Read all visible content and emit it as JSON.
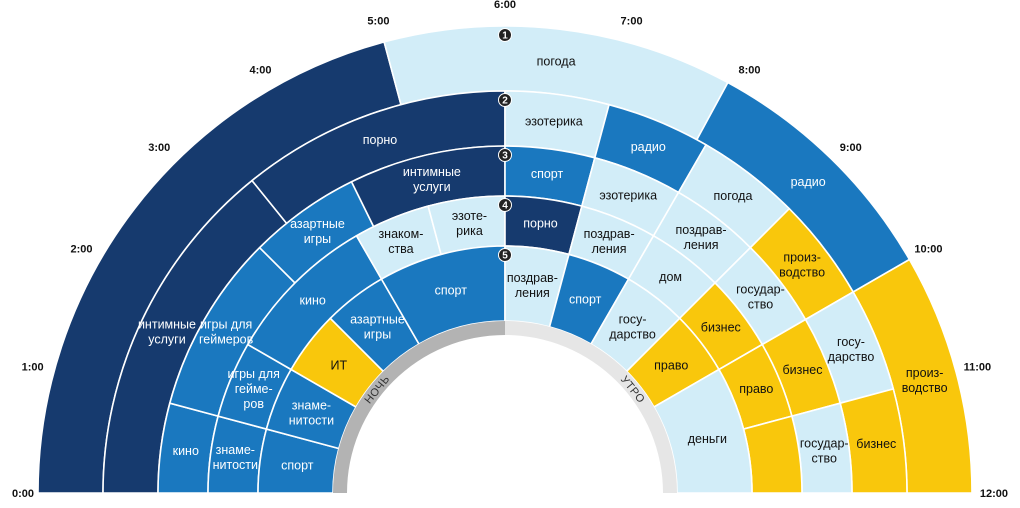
{
  "colors": {
    "night": "#163a6e",
    "mid": "#1a78bf",
    "pale": "#d2edf8",
    "gold": "#f9c70c",
    "band": "#b3b3b3",
    "band_right": "#e6e6e6",
    "ring_num_bg": "#222222"
  },
  "chart_data": {
    "type": "radial-timeline",
    "title": "",
    "time_labels": [
      "0:00",
      "1:00",
      "2:00",
      "3:00",
      "4:00",
      "5:00",
      "6:00",
      "7:00",
      "8:00",
      "9:00",
      "10:00",
      "11:00",
      "12:00"
    ],
    "band_labels": [
      "НОЧЬ",
      "УТРО"
    ],
    "rings": [
      {
        "number": "1",
        "segments": [
          {
            "start": 0,
            "end": 5,
            "label": "",
            "color": "night"
          },
          {
            "start": 5,
            "end": 7.9,
            "label": "погода",
            "color": "pale"
          },
          {
            "start": 7.9,
            "end": 10,
            "label": "радио",
            "color": "mid"
          },
          {
            "start": 10,
            "end": 12,
            "label": "произ-\nводство",
            "color": "gold"
          }
        ]
      },
      {
        "number": "2",
        "segments": [
          {
            "start": 0,
            "end": 3.4,
            "label": "интимные\nуслуги",
            "color": "night"
          },
          {
            "start": 3.4,
            "end": 6,
            "label": "порно",
            "color": "night"
          },
          {
            "start": 6,
            "end": 7,
            "label": "эзотерика",
            "color": "pale"
          },
          {
            "start": 7,
            "end": 8,
            "label": "радио",
            "color": "mid"
          },
          {
            "start": 8,
            "end": 9,
            "label": "погода",
            "color": "pale"
          },
          {
            "start": 9,
            "end": 10,
            "label": "произ-\nводство",
            "color": "gold"
          },
          {
            "start": 10,
            "end": 11,
            "label": "госу-\nдарство",
            "color": "pale"
          },
          {
            "start": 11,
            "end": 12,
            "label": "бизнес",
            "color": "gold"
          }
        ]
      },
      {
        "number": "3",
        "segments": [
          {
            "start": 0,
            "end": 1,
            "label": "кино",
            "color": "mid"
          },
          {
            "start": 1,
            "end": 3,
            "label": "игры для\nгеймеров",
            "color": "mid"
          },
          {
            "start": 3,
            "end": 4.25,
            "label": "азартные\nигры",
            "color": "mid"
          },
          {
            "start": 4.25,
            "end": 6,
            "label": "интимные\nуслуги",
            "color": "night"
          },
          {
            "start": 6,
            "end": 7,
            "label": "спорт",
            "color": "mid"
          },
          {
            "start": 7,
            "end": 8,
            "label": "эзотерика",
            "color": "pale"
          },
          {
            "start": 8,
            "end": 9,
            "label": "поздрав-\nления",
            "color": "pale"
          },
          {
            "start": 9,
            "end": 10,
            "label": "государ-\nство",
            "color": "pale"
          },
          {
            "start": 10,
            "end": 11,
            "label": "бизнес",
            "color": "gold"
          },
          {
            "start": 11,
            "end": 12,
            "label": "государ-\nство",
            "color": "pale"
          }
        ]
      },
      {
        "number": "4",
        "segments": [
          {
            "start": 0,
            "end": 1,
            "label": "знаме-\nнитости",
            "color": "mid"
          },
          {
            "start": 1,
            "end": 2,
            "label": "игры для\nгейме-\nров",
            "color": "mid"
          },
          {
            "start": 2,
            "end": 4,
            "label": "кино",
            "color": "mid"
          },
          {
            "start": 4,
            "end": 5,
            "label": "знаком-\nства",
            "color": "pale"
          },
          {
            "start": 5,
            "end": 6,
            "label": "эзоте-\nрика",
            "color": "pale"
          },
          {
            "start": 6,
            "end": 7,
            "label": "порно",
            "color": "night"
          },
          {
            "start": 7,
            "end": 8,
            "label": "поздрав-\nления",
            "color": "pale"
          },
          {
            "start": 8,
            "end": 9,
            "label": "дом",
            "color": "pale"
          },
          {
            "start": 9,
            "end": 10,
            "label": "бизнес",
            "color": "gold"
          },
          {
            "start": 10,
            "end": 11,
            "label": "право",
            "color": "gold"
          },
          {
            "start": 11,
            "end": 12,
            "label": "",
            "color": "gold"
          }
        ]
      },
      {
        "number": "5",
        "segments": [
          {
            "start": 0,
            "end": 1,
            "label": "спорт",
            "color": "mid"
          },
          {
            "start": 1,
            "end": 2,
            "label": "знаме-\nнитости",
            "color": "mid"
          },
          {
            "start": 2,
            "end": 3,
            "label": "ИТ",
            "color": "gold"
          },
          {
            "start": 3,
            "end": 4,
            "label": "азартные\nигры",
            "color": "mid"
          },
          {
            "start": 4,
            "end": 6,
            "label": "спорт",
            "color": "mid"
          },
          {
            "start": 6,
            "end": 7,
            "label": "поздрав-\nления",
            "color": "pale"
          },
          {
            "start": 7,
            "end": 8,
            "label": "спорт",
            "color": "mid"
          },
          {
            "start": 8,
            "end": 9,
            "label": "госу-\nдарство",
            "color": "pale"
          },
          {
            "start": 9,
            "end": 10,
            "label": "право",
            "color": "gold"
          },
          {
            "start": 10,
            "end": 12,
            "label": "деньги",
            "color": "pale"
          }
        ]
      }
    ]
  }
}
